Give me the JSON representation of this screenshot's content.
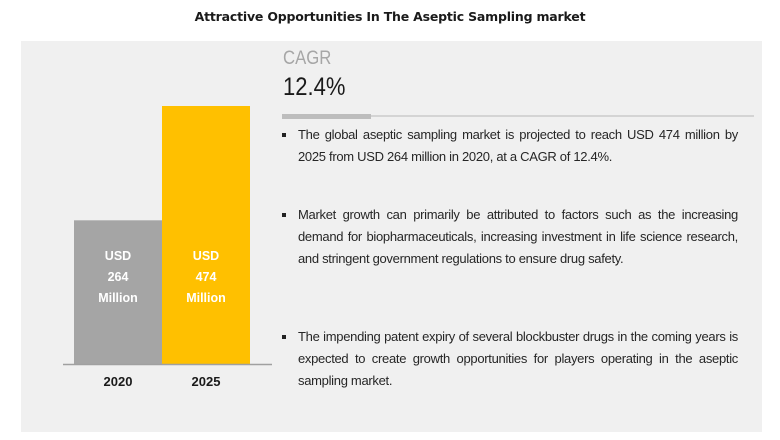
{
  "title": "Attractive Opportunities In The Aseptic Sampling market",
  "cagr": {
    "label": "CAGR",
    "value": "12.4%"
  },
  "bullets": [
    "The global aseptic sampling market is projected to reach USD 474 million by 2025 from USD 264 million in 2020, at a CAGR of 12.4%.",
    "Market growth can primarily be attributed to factors such as the increasing demand for biopharmaceuticals, increasing investment in life science research, and stringent government regulations to ensure drug safety.",
    "The impending patent expiry of several blockbuster drugs in the coming years is expected to create growth opportunities for players operating in the aseptic sampling market."
  ],
  "colors": {
    "bar_2020": "#a5a5a5",
    "bar_2025": "#ffc000",
    "panel": "#f0f0f0",
    "baseline": "#a0a0a0"
  },
  "chart_data": {
    "type": "bar",
    "title": "",
    "xlabel": "",
    "ylabel": "",
    "categories": [
      "2020",
      "2025"
    ],
    "values": [
      264,
      474
    ],
    "unit": "USD Million",
    "data_labels": [
      [
        "USD",
        "264",
        "Million"
      ],
      [
        "USD",
        "474",
        "Million"
      ]
    ],
    "ylim": [
      0,
      474
    ],
    "grid": false,
    "legend": "none"
  }
}
